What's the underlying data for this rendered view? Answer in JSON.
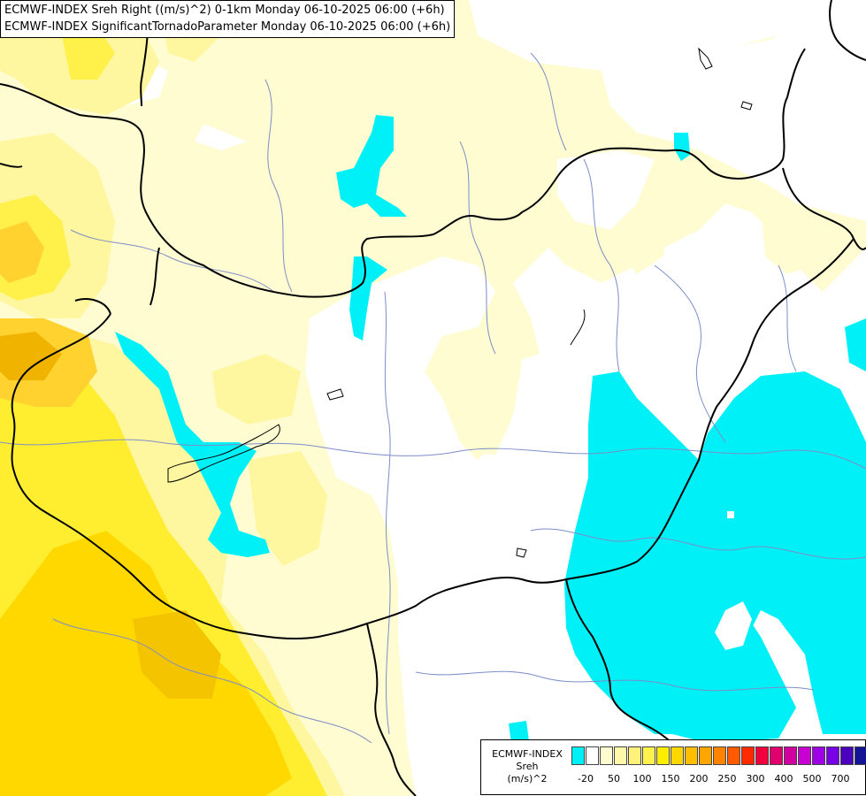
{
  "header": {
    "line1": "ECMWF-INDEX Sreh Right ((m/s)^2) 0-1km Monday 06-10-2025 06:00 (+6h)",
    "line2": "ECMWF-INDEX SignificantTornadoParameter Monday 06-10-2025 06:00 (+6h)"
  },
  "legend": {
    "name_line1": "ECMWF-INDEX",
    "name_line2": "Sreh",
    "name_line3": "(m/s)^2",
    "colors": [
      "#00f0f8",
      "#ffffff",
      "#fffcd2",
      "#fff8a8",
      "#fff27a",
      "#fff24c",
      "#ffee00",
      "#ffd700",
      "#ffbe00",
      "#ffa500",
      "#ff8200",
      "#ff5a00",
      "#ff2a00",
      "#f0003c",
      "#e0006e",
      "#d200a0",
      "#c800d2",
      "#a000e6",
      "#7800e6",
      "#4b00be",
      "#141496"
    ],
    "ticks": [
      "-20",
      "50",
      "100",
      "150",
      "200",
      "250",
      "300",
      "400",
      "500",
      "700"
    ]
  },
  "map": {
    "fill_colors": {
      "pale_yellow": "#fffcd2",
      "light_yellow": "#fff6a0",
      "yellow": "#ffee00",
      "orange": "#ffd230",
      "dark_orange": "#f0b400",
      "cyan": "#00f0f8"
    }
  }
}
